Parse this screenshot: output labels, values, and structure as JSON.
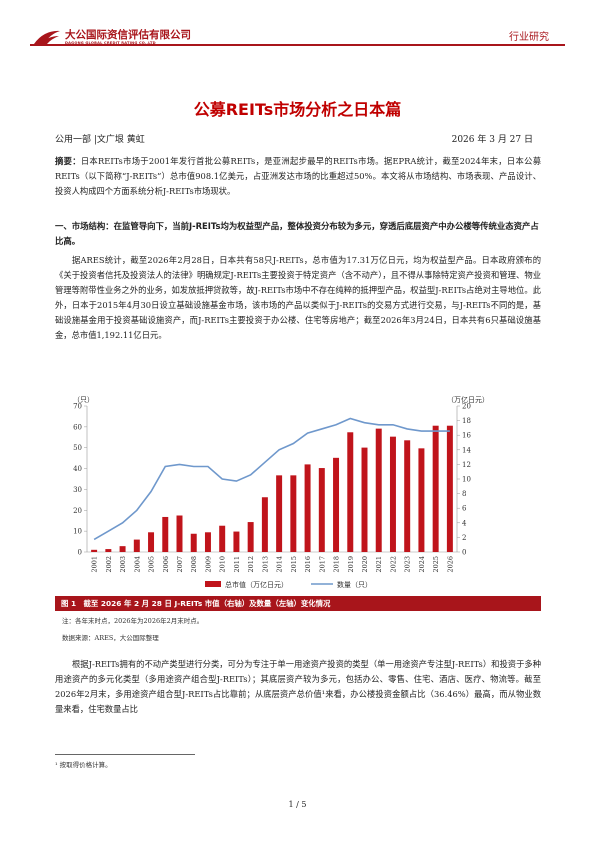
{
  "header": {
    "logo_cn": "大公国际资信评估有限公司",
    "logo_en": "DAGONG GLOBAL CREDIT RATING CO.,LTD",
    "category": "行业研究"
  },
  "title": "公募REITs市场分析之日本篇",
  "byline": "公用一部 |文广垠 黄虹",
  "date": "2026 年 3 月 27 日",
  "abstract": {
    "label": "摘要：",
    "text": "日本REITs市场于2001年发行首批公募REITs，是亚洲起步最早的REITs市场。据EPRA统计，截至2024年末，日本公募REITs（以下简称“J-REITs”）总市值908.1亿美元，占亚洲发达市场的比重超过50%。本文将从市场结构、市场表现、产品设计、投资人构成四个方面系统分析J-REITs市场现状。"
  },
  "section1": {
    "heading": "一、市场结构：在监管导向下，当前J-REITs均为权益型产品，整体投资分布较为多元，穿透后底层资产中办公楼等传统业态资产占比高。",
    "para1": "据ARES统计，截至2026年2月28日，日本共有58只J-REITs，总市值为17.31万亿日元，均为权益型产品。日本政府颁布的《关于投资者信托及投资法人的法律》明确规定J-REITs主要投资于特定资产（含不动产），且不得从事除特定资产投资和管理、物业管理等附带性业务之外的业务，如发放抵押贷款等，故J-REITs市场中不存在纯粹的抵押型产品，权益型J-REITs占绝对主导地位。此外，日本于2015年4月30日设立基础设施基金市场，该市场的产品以类似于J-REITs的交易方式进行交易，与J-REITs不同的是，基础设施基金用于投资基础设施资产，而J-REITs主要投资于办公楼、住宅等房地产；截至2026年3月24日，日本共有6只基础设施基金，总市值1,192.11亿日元。",
    "para2": "根据J-REITs拥有的不动产类型进行分类，可分为专注于单一用途资产投资的类型（单一用途资产专注型J-REITs）和投资于多种用途资产的多元化类型（多用途资产组合型J-REITs）；其底层资产较为多元，包括办公、零售、住宅、酒店、医疗、物流等。截至2026年2月末，多用途资产组合型J-REITs占比靠前；从底层资产总价值¹来看，办公楼投资金额占比（36.46%）最高，而从物业数量来看，住宅数量占比"
  },
  "figure": {
    "caption": "图 1　截至 2026 年 2 月 28 日 J-REITs 市值（右轴）及数量（左轴）变化情况",
    "note": "注：各年末时点，2026年为2026年2月末时点。",
    "source": "数据来源：ARES，大公国际整理"
  },
  "footnote": "¹ 按取得价格计算。",
  "page": "1 / 5",
  "chart_data": {
    "type": "bar",
    "categories": [
      "2001",
      "2002",
      "2003",
      "2004",
      "2005",
      "2006",
      "2007",
      "2008",
      "2009",
      "2010",
      "2011",
      "2012",
      "2013",
      "2014",
      "2015",
      "2016",
      "2017",
      "2018",
      "2019",
      "2020",
      "2021",
      "2022",
      "2023",
      "2024",
      "2025",
      "2026"
    ],
    "series": [
      {
        "name": "总市值（万亿日元）",
        "axis": "right",
        "type": "bar",
        "color": "#c0141b",
        "values": [
          0.3,
          0.4,
          0.8,
          1.7,
          2.7,
          4.8,
          5.0,
          2.5,
          2.7,
          3.6,
          2.8,
          4.1,
          7.5,
          10.5,
          10.5,
          12.0,
          11.5,
          12.9,
          16.4,
          14.3,
          16.9,
          15.8,
          15.3,
          14.2,
          17.3,
          17.3
        ]
      },
      {
        "name": "数量（只）",
        "axis": "left",
        "type": "line",
        "color": "#6f98cc",
        "values": [
          6,
          10,
          14,
          20,
          29,
          41,
          42,
          41,
          41,
          35,
          34,
          37,
          43,
          49,
          52,
          57,
          59,
          61,
          64,
          62,
          61,
          61,
          59,
          58,
          58,
          58
        ]
      }
    ],
    "y_left": {
      "label": "（只）",
      "min": 0,
      "max": 70,
      "ticks": [
        0,
        10,
        20,
        30,
        40,
        50,
        60,
        70
      ]
    },
    "y_right": {
      "label": "（万亿日元）",
      "min": 0,
      "max": 20,
      "ticks": [
        0,
        2,
        4,
        6,
        8,
        10,
        12,
        14,
        16,
        18,
        20
      ]
    },
    "legend_position": "bottom",
    "grid": false
  }
}
